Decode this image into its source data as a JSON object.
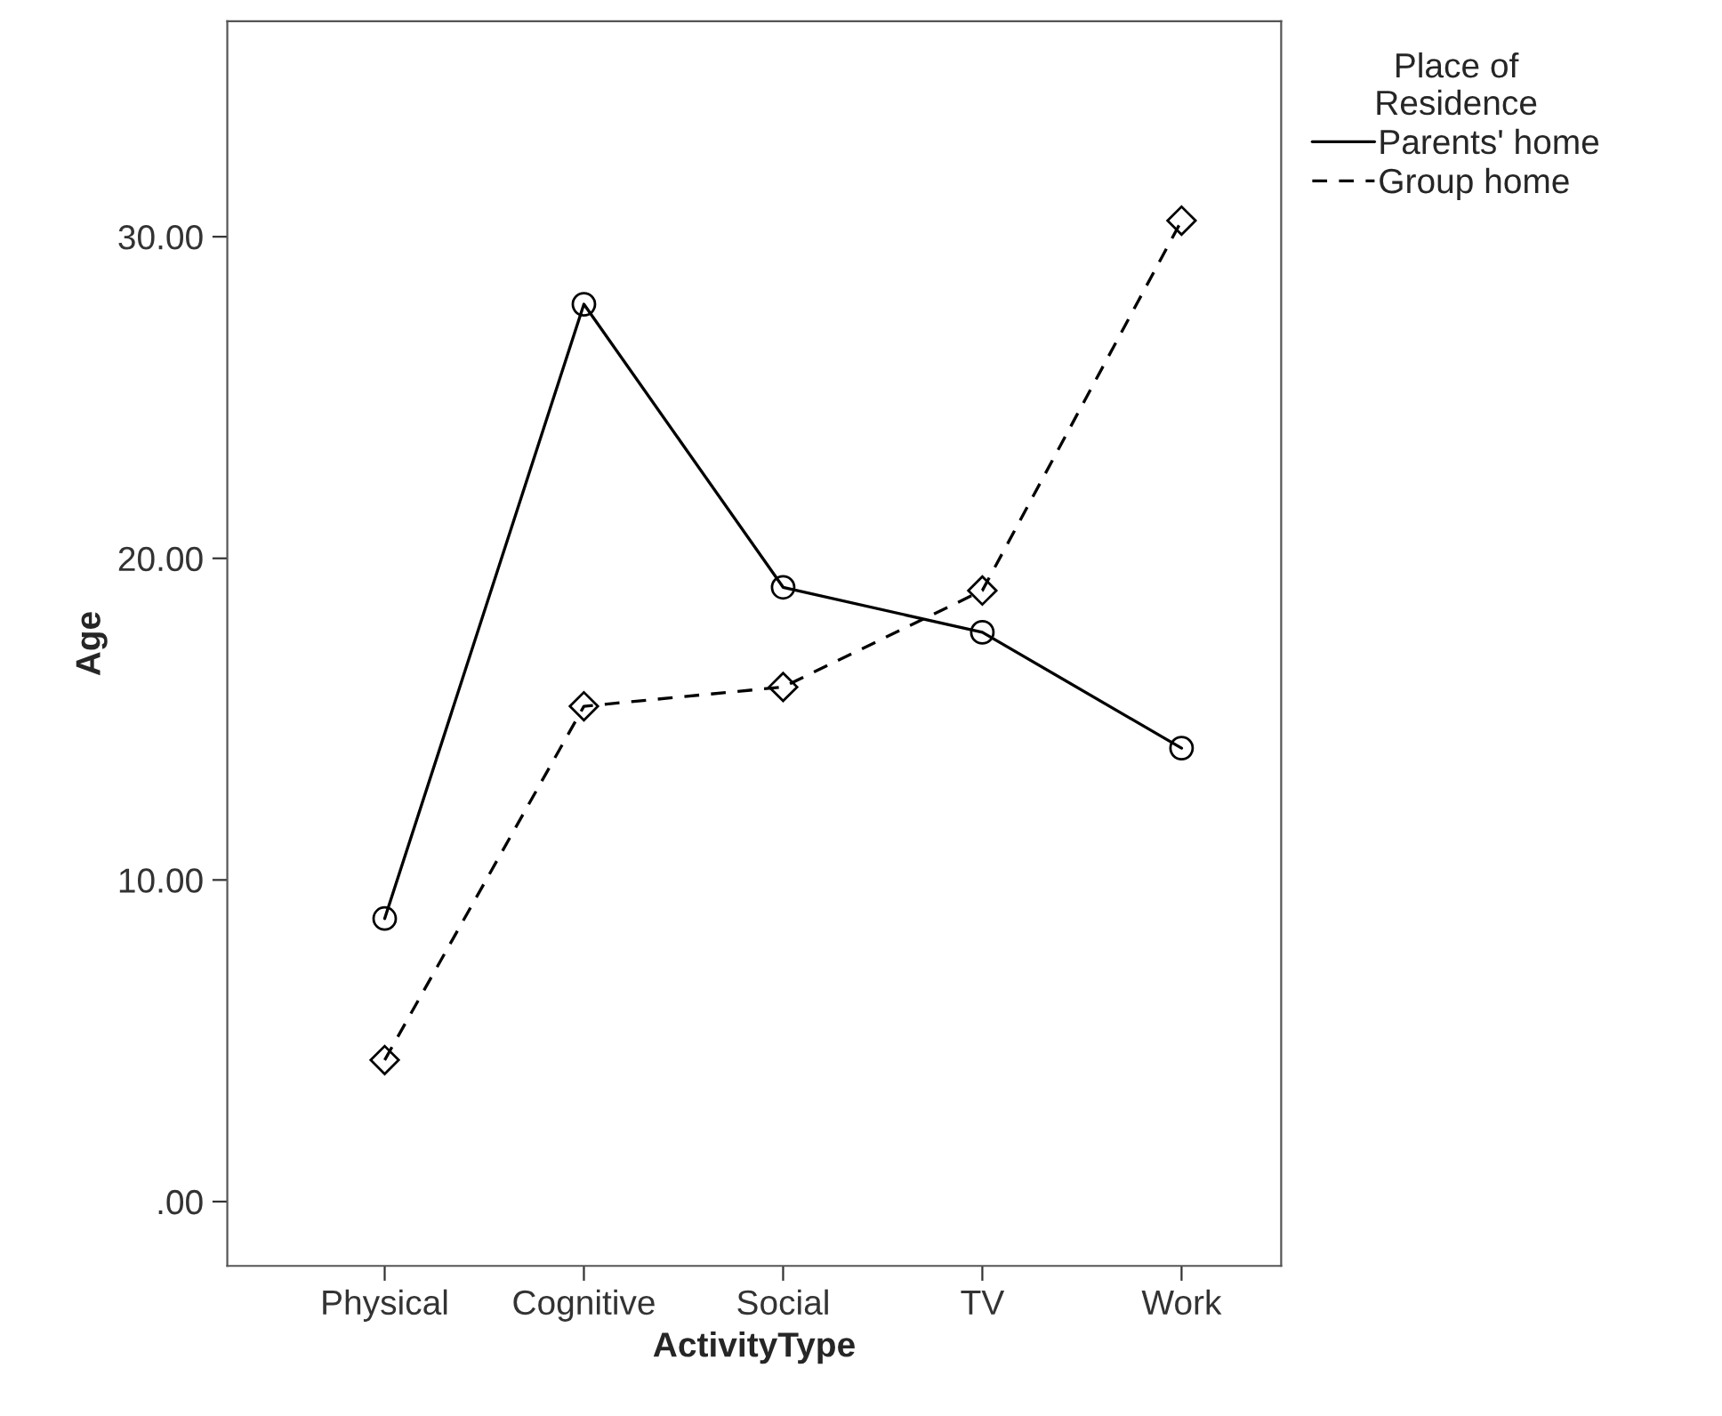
{
  "chart_data": {
    "type": "line",
    "xlabel": "ActivityType",
    "ylabel": "Age",
    "legend_title": "Place of\nResidence",
    "legend": "right",
    "categories": [
      "Physical",
      "Cognitive",
      "Social",
      "TV",
      "Work"
    ],
    "series": [
      {
        "name": "Parents' home",
        "color": "#000000",
        "marker": "circle",
        "line_style": "solid",
        "values": [
          8.8,
          27.9,
          19.1,
          17.7,
          14.1
        ]
      },
      {
        "name": "Group home",
        "color": "#000000",
        "marker": "diamond",
        "line_style": "dashed",
        "values": [
          4.4,
          15.4,
          16.0,
          19.0,
          30.5
        ]
      }
    ],
    "ylim": [
      -2,
      36.7
    ],
    "yticks": [
      {
        "value": 0,
        "label": ".00"
      },
      {
        "value": 10,
        "label": "10.00"
      },
      {
        "value": 20,
        "label": "20.00"
      },
      {
        "value": 30,
        "label": "30.00"
      }
    ],
    "grid": false
  }
}
